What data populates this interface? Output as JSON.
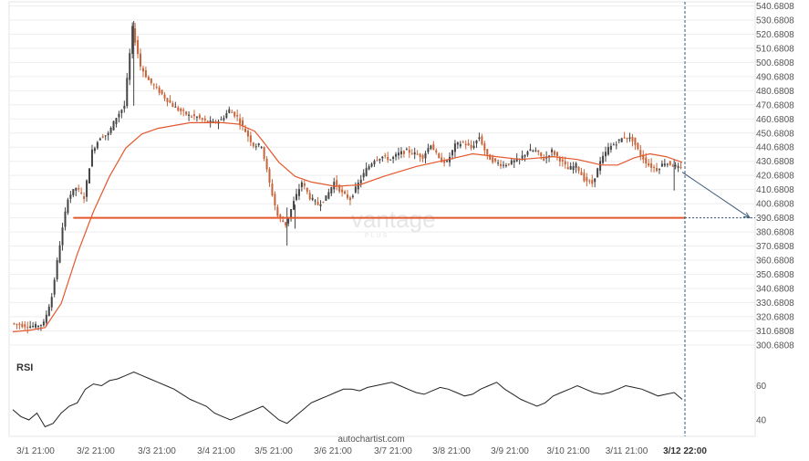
{
  "chart_data": {
    "type": "candlestick",
    "y_ticks": [
      "540.6808",
      "530.6808",
      "520.6808",
      "510.6808",
      "500.6808",
      "490.6808",
      "480.6808",
      "470.6808",
      "460.6808",
      "450.6808",
      "440.6808",
      "430.6808",
      "420.6808",
      "410.6808",
      "400.6808",
      "390.6808",
      "380.6808",
      "370.6808",
      "360.6808",
      "350.6808",
      "340.6808",
      "330.6808",
      "320.6808",
      "310.6808",
      "300.6808"
    ],
    "ylim": [
      298,
      541
    ],
    "x_labels": [
      "3/1 21:00",
      "3/2 21:00",
      "3/3 21:00",
      "3/4 21:00",
      "3/5 21:00",
      "3/6 21:00",
      "3/7 21:00",
      "3/8 21:00",
      "3/9 21:00",
      "3/10 21:00",
      "3/11 21:00",
      "3/12 22:00"
    ],
    "highlight_x_label": "3/12 22:00",
    "support_level": 390.6808,
    "price_path": [
      [
        0,
        316
      ],
      [
        1,
        315
      ],
      [
        2,
        314
      ],
      [
        3,
        314
      ],
      [
        4,
        316
      ],
      [
        5,
        335
      ],
      [
        6,
        372
      ],
      [
        7,
        405
      ],
      [
        8,
        412
      ],
      [
        9,
        405
      ],
      [
        10,
        438
      ],
      [
        11,
        448
      ],
      [
        12,
        450
      ],
      [
        13,
        462
      ],
      [
        14,
        470
      ],
      [
        15,
        525
      ],
      [
        16,
        498
      ],
      [
        17,
        488
      ],
      [
        18,
        482
      ],
      [
        19,
        476
      ],
      [
        20,
        470
      ],
      [
        21,
        466
      ],
      [
        22,
        463
      ],
      [
        23,
        462
      ],
      [
        24,
        459
      ],
      [
        25,
        458
      ],
      [
        26,
        460
      ],
      [
        27,
        467
      ],
      [
        28,
        462
      ],
      [
        29,
        452
      ],
      [
        30,
        442
      ],
      [
        31,
        442
      ],
      [
        32,
        415
      ],
      [
        33,
        392
      ],
      [
        34,
        386
      ],
      [
        35,
        402
      ],
      [
        36,
        416
      ],
      [
        37,
        405
      ],
      [
        38,
        400
      ],
      [
        39,
        405
      ],
      [
        40,
        416
      ],
      [
        41,
        408
      ],
      [
        42,
        404
      ],
      [
        43,
        415
      ],
      [
        44,
        425
      ],
      [
        45,
        432
      ],
      [
        46,
        434
      ],
      [
        47,
        432
      ],
      [
        48,
        436
      ],
      [
        49,
        438
      ],
      [
        50,
        436
      ],
      [
        51,
        434
      ],
      [
        52,
        443
      ],
      [
        53,
        432
      ],
      [
        54,
        430
      ],
      [
        55,
        442
      ],
      [
        56,
        444
      ],
      [
        57,
        440
      ],
      [
        58,
        448
      ],
      [
        59,
        434
      ],
      [
        60,
        430
      ],
      [
        61,
        428
      ],
      [
        62,
        430
      ],
      [
        63,
        432
      ],
      [
        64,
        438
      ],
      [
        65,
        438
      ],
      [
        66,
        432
      ],
      [
        67,
        438
      ],
      [
        68,
        432
      ],
      [
        69,
        425
      ],
      [
        70,
        428
      ],
      [
        71,
        418
      ],
      [
        72,
        415
      ],
      [
        73,
        430
      ],
      [
        74,
        440
      ],
      [
        75,
        444
      ],
      [
        76,
        448
      ],
      [
        77,
        446
      ],
      [
        78,
        435
      ],
      [
        79,
        428
      ],
      [
        80,
        425
      ],
      [
        81,
        430
      ],
      [
        82,
        428
      ],
      [
        83,
        425
      ]
    ],
    "ma_path": [
      [
        0,
        310
      ],
      [
        2,
        311
      ],
      [
        4,
        313
      ],
      [
        6,
        330
      ],
      [
        8,
        365
      ],
      [
        10,
        395
      ],
      [
        12,
        420
      ],
      [
        14,
        440
      ],
      [
        16,
        450
      ],
      [
        18,
        454
      ],
      [
        20,
        456
      ],
      [
        22,
        458
      ],
      [
        24,
        458
      ],
      [
        26,
        458
      ],
      [
        28,
        457
      ],
      [
        30,
        452
      ],
      [
        31,
        445
      ],
      [
        33,
        430
      ],
      [
        35,
        420
      ],
      [
        37,
        416
      ],
      [
        40,
        413
      ],
      [
        43,
        414
      ],
      [
        46,
        420
      ],
      [
        50,
        427
      ],
      [
        54,
        432
      ],
      [
        57,
        436
      ],
      [
        60,
        434
      ],
      [
        63,
        432
      ],
      [
        67,
        434
      ],
      [
        70,
        432
      ],
      [
        73,
        428
      ],
      [
        75,
        428
      ],
      [
        77,
        433
      ],
      [
        79,
        436
      ],
      [
        81,
        434
      ],
      [
        83,
        430
      ]
    ],
    "projection": {
      "from": [
        83,
        423
      ],
      "to_value": 390.6808
    },
    "rsi": {
      "title": "RSI",
      "ylim": [
        32,
        72
      ],
      "ticks": [
        60,
        40
      ],
      "values": [
        46,
        42,
        40,
        44,
        36,
        38,
        44,
        48,
        50,
        58,
        61,
        60,
        63,
        64,
        66,
        68,
        66,
        64,
        62,
        60,
        58,
        55,
        52,
        50,
        48,
        44,
        42,
        40,
        42,
        44,
        46,
        48,
        44,
        40,
        38,
        42,
        46,
        50,
        52,
        54,
        56,
        58,
        58,
        57,
        59,
        60,
        61,
        62,
        60,
        58,
        56,
        55,
        57,
        59,
        58,
        56,
        54,
        55,
        58,
        60,
        62,
        58,
        55,
        52,
        50,
        48,
        50,
        54,
        56,
        58,
        60,
        58,
        56,
        55,
        56,
        58,
        60,
        59,
        58,
        56,
        54,
        55,
        56,
        52
      ]
    },
    "source": "autochartist.com",
    "watermark": "vantage",
    "watermark_sub": "PLUS",
    "colors": {
      "candle": "#c8643a",
      "candle_dark": "#444444",
      "ma": "#e4582d",
      "support": "#e4582d",
      "projection": "#3a5a78",
      "rsi": "#222222",
      "grid": "#eeeeee",
      "axis_text": "#555555"
    }
  }
}
